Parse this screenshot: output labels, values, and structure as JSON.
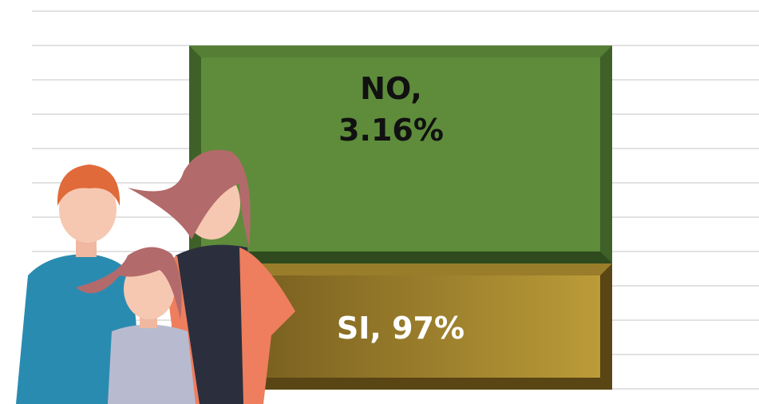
{
  "segments": [
    {
      "label": "NO,",
      "value": "3.16%"
    },
    {
      "label": "SI, 97%"
    }
  ]
}
